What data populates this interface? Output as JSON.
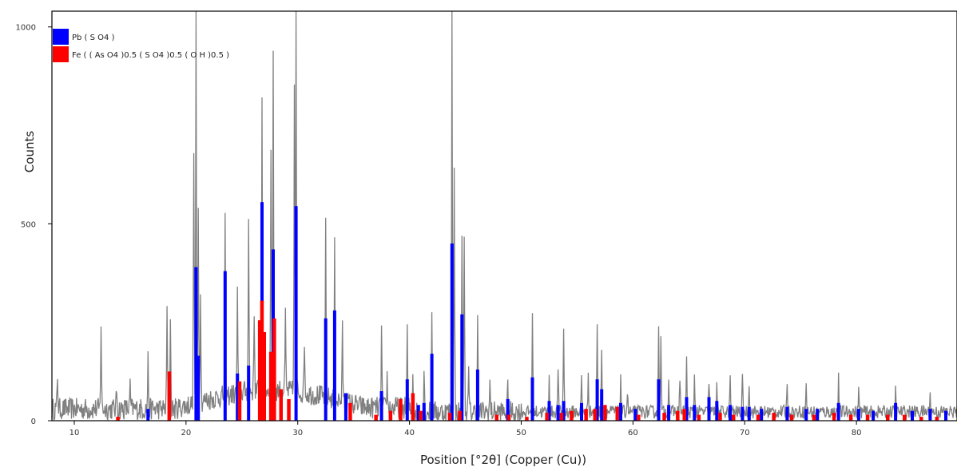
{
  "chart_data": {
    "type": "line",
    "title": "",
    "xlabel": "Position [°2θ] (Copper (Cu))",
    "ylabel": "Counts",
    "xlim": [
      8,
      89
    ],
    "ylim": [
      0,
      1040
    ],
    "x_ticks": [
      10,
      20,
      30,
      40,
      50,
      60,
      70,
      80
    ],
    "y_ticks": [
      0,
      500,
      1000
    ],
    "grid": false,
    "legend_position": "top-left",
    "background_pattern": {
      "color": "#808080",
      "baseline_counts": 30,
      "noise_amplitude": 28,
      "hump_region": [
        19,
        36
      ],
      "hump_height": 45
    },
    "observed_peaks": [
      [
        8.5,
        85
      ],
      [
        12.4,
        220
      ],
      [
        13.8,
        50
      ],
      [
        15.0,
        55
      ],
      [
        16.6,
        125
      ],
      [
        18.3,
        260
      ],
      [
        18.6,
        240
      ],
      [
        20.7,
        650
      ],
      [
        20.9,
        970
      ],
      [
        21.1,
        510
      ],
      [
        21.3,
        300
      ],
      [
        23.5,
        440
      ],
      [
        24.6,
        255
      ],
      [
        25.6,
        430
      ],
      [
        26.1,
        210
      ],
      [
        26.8,
        765
      ],
      [
        27.8,
        875
      ],
      [
        27.6,
        600
      ],
      [
        28.9,
        190
      ],
      [
        29.7,
        760
      ],
      [
        29.85,
        1010
      ],
      [
        30.6,
        140
      ],
      [
        32.5,
        430
      ],
      [
        33.3,
        385
      ],
      [
        34.0,
        180
      ],
      [
        37.5,
        200
      ],
      [
        38.0,
        80
      ],
      [
        39.8,
        195
      ],
      [
        40.3,
        110
      ],
      [
        41.3,
        110
      ],
      [
        42.0,
        270
      ],
      [
        43.8,
        1040
      ],
      [
        44.0,
        610
      ],
      [
        44.7,
        470
      ],
      [
        44.9,
        440
      ],
      [
        45.3,
        100
      ],
      [
        46.1,
        250
      ],
      [
        47.2,
        70
      ],
      [
        48.8,
        60
      ],
      [
        51.0,
        245
      ],
      [
        52.5,
        100
      ],
      [
        53.3,
        120
      ],
      [
        53.8,
        215
      ],
      [
        55.4,
        90
      ],
      [
        56.0,
        100
      ],
      [
        56.8,
        230
      ],
      [
        57.2,
        170
      ],
      [
        58.9,
        80
      ],
      [
        59.5,
        55
      ],
      [
        62.3,
        225
      ],
      [
        62.5,
        180
      ],
      [
        63.2,
        90
      ],
      [
        64.2,
        95
      ],
      [
        64.8,
        130
      ],
      [
        65.5,
        90
      ],
      [
        66.8,
        85
      ],
      [
        67.5,
        80
      ],
      [
        68.7,
        90
      ],
      [
        69.8,
        85
      ],
      [
        70.4,
        80
      ],
      [
        73.8,
        85
      ],
      [
        75.5,
        65
      ],
      [
        78.4,
        85
      ],
      [
        80.2,
        60
      ],
      [
        83.5,
        55
      ],
      [
        86.6,
        45
      ]
    ],
    "series": [
      {
        "name": "Pb ( S O4 )",
        "color": "#0000ff",
        "peaks": [
          [
            16.6,
            30
          ],
          [
            20.9,
            390
          ],
          [
            21.1,
            165
          ],
          [
            23.5,
            380
          ],
          [
            24.6,
            120
          ],
          [
            25.6,
            140
          ],
          [
            26.8,
            555
          ],
          [
            27.8,
            435
          ],
          [
            29.85,
            545
          ],
          [
            32.5,
            260
          ],
          [
            33.3,
            280
          ],
          [
            34.3,
            70
          ],
          [
            37.5,
            75
          ],
          [
            39.8,
            105
          ],
          [
            40.8,
            40
          ],
          [
            41.3,
            45
          ],
          [
            42.0,
            170
          ],
          [
            43.8,
            450
          ],
          [
            44.7,
            270
          ],
          [
            46.1,
            130
          ],
          [
            48.8,
            55
          ],
          [
            51.0,
            110
          ],
          [
            52.5,
            50
          ],
          [
            53.3,
            40
          ],
          [
            53.8,
            50
          ],
          [
            55.4,
            45
          ],
          [
            56.8,
            105
          ],
          [
            57.2,
            80
          ],
          [
            58.9,
            45
          ],
          [
            60.2,
            30
          ],
          [
            62.3,
            105
          ],
          [
            63.2,
            40
          ],
          [
            64.8,
            60
          ],
          [
            65.5,
            40
          ],
          [
            66.8,
            60
          ],
          [
            67.5,
            50
          ],
          [
            68.7,
            40
          ],
          [
            69.8,
            35
          ],
          [
            70.4,
            35
          ],
          [
            71.5,
            30
          ],
          [
            73.8,
            35
          ],
          [
            75.5,
            30
          ],
          [
            76.5,
            30
          ],
          [
            78.4,
            45
          ],
          [
            80.2,
            30
          ],
          [
            81.5,
            25
          ],
          [
            83.5,
            45
          ],
          [
            85.0,
            25
          ],
          [
            86.6,
            30
          ],
          [
            88.0,
            25
          ]
        ]
      },
      {
        "name": "Fe ( ( As O4 )0.5 ( S O4 )0.5 ( O H )0.5 )",
        "color": "#ff0000",
        "peaks": [
          [
            13.9,
            10
          ],
          [
            18.5,
            125
          ],
          [
            24.8,
            100
          ],
          [
            26.6,
            255
          ],
          [
            26.8,
            305
          ],
          [
            27.0,
            225
          ],
          [
            27.6,
            175
          ],
          [
            27.9,
            260
          ],
          [
            28.5,
            80
          ],
          [
            29.2,
            55
          ],
          [
            34.7,
            45
          ],
          [
            37.0,
            15
          ],
          [
            38.3,
            25
          ],
          [
            39.2,
            55
          ],
          [
            40.3,
            70
          ],
          [
            41.0,
            25
          ],
          [
            43.6,
            20
          ],
          [
            44.5,
            25
          ],
          [
            47.8,
            15
          ],
          [
            48.9,
            15
          ],
          [
            50.5,
            10
          ],
          [
            52.3,
            20
          ],
          [
            53.6,
            20
          ],
          [
            54.5,
            25
          ],
          [
            55.8,
            30
          ],
          [
            56.6,
            30
          ],
          [
            57.5,
            40
          ],
          [
            58.6,
            35
          ],
          [
            60.5,
            15
          ],
          [
            62.8,
            20
          ],
          [
            64.0,
            25
          ],
          [
            64.6,
            30
          ],
          [
            65.9,
            15
          ],
          [
            67.8,
            20
          ],
          [
            69.0,
            15
          ],
          [
            71.2,
            15
          ],
          [
            72.6,
            20
          ],
          [
            74.2,
            15
          ],
          [
            76.2,
            15
          ],
          [
            78.0,
            20
          ],
          [
            79.5,
            15
          ],
          [
            81.0,
            15
          ],
          [
            82.8,
            15
          ],
          [
            84.3,
            15
          ],
          [
            85.8,
            10
          ],
          [
            87.2,
            10
          ]
        ]
      }
    ]
  }
}
